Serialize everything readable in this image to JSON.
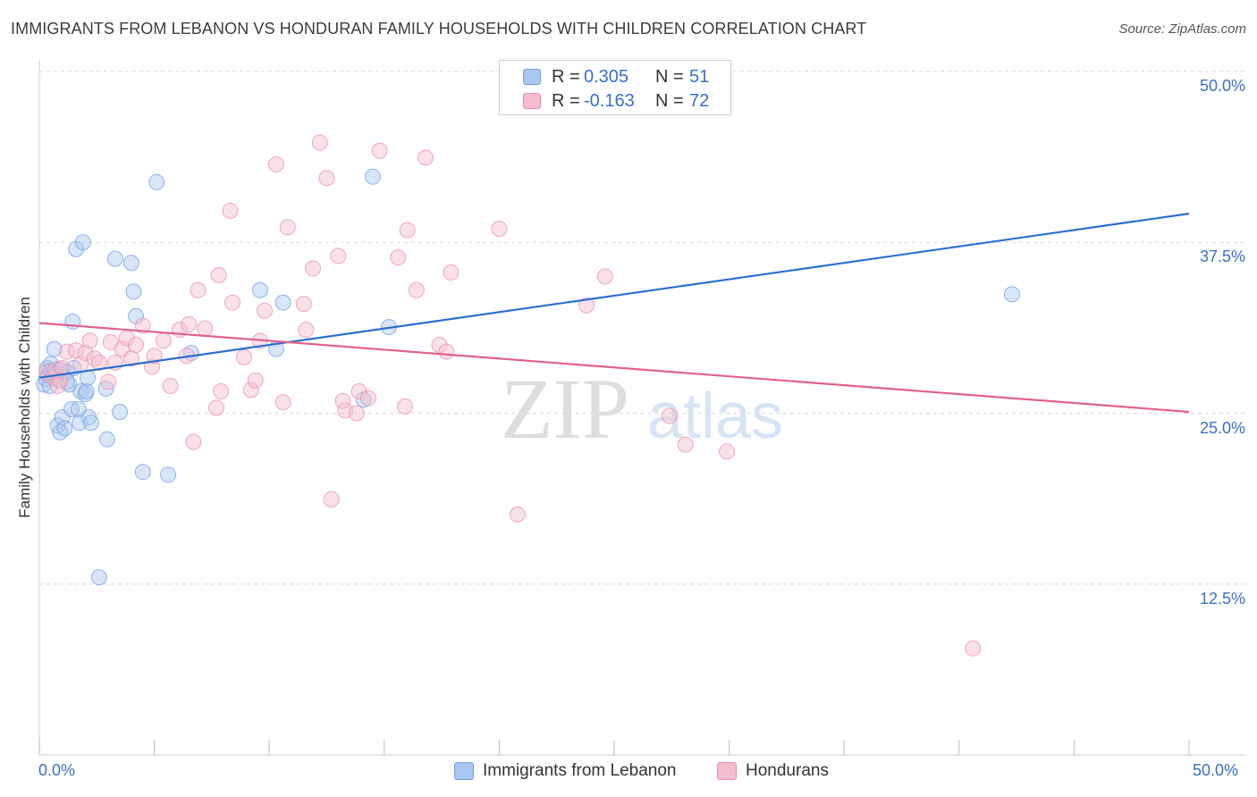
{
  "header": {
    "title": "IMMIGRANTS FROM LEBANON VS HONDURAN FAMILY HOUSEHOLDS WITH CHILDREN CORRELATION CHART",
    "source": "Source: ZipAtlas.com"
  },
  "watermark": {
    "zip": "ZIP",
    "atlas": "atlas"
  },
  "colors": {
    "blue": "#6f9fe6",
    "blue_fill": "#aac7f0",
    "blue_line": "#2c6fd2",
    "pink": "#ea8fab",
    "pink_fill": "#f4bccd",
    "pink_line": "#e0628c",
    "value_text": "#3a6fc8",
    "grid": "#d8d8d8"
  },
  "legend_top": {
    "series": [
      {
        "r_label": "R =",
        "r_value": "0.305",
        "n_label": "N =",
        "n_value": "51"
      },
      {
        "r_label": "R =",
        "r_value": "-0.163",
        "n_label": "N =",
        "n_value": "72"
      }
    ]
  },
  "legend_bottom": {
    "items": [
      "Immigrants from Lebanon",
      "Hondurans"
    ]
  },
  "chart_data": {
    "type": "scatter",
    "title": "IMMIGRANTS FROM LEBANON VS HONDURAN FAMILY HOUSEHOLDS WITH CHILDREN CORRELATION CHART",
    "xlabel": "",
    "ylabel": "Family Households with Children",
    "xlim": [
      0,
      50
    ],
    "ylim": [
      0,
      50
    ],
    "x_tick_labels": [
      "0.0%",
      "50.0%"
    ],
    "y_tick_values": [
      12.5,
      25.0,
      37.5,
      50.0
    ],
    "y_tick_labels": [
      "12.5%",
      "25.0%",
      "37.5%",
      "50.0%"
    ],
    "grid": true,
    "legend_position": "top-center",
    "series": [
      {
        "name": "Immigrants from Lebanon",
        "r": 0.305,
        "n": 51,
        "trend": {
          "x": [
            0,
            50
          ],
          "y": [
            27.6,
            39.6
          ]
        },
        "points": [
          [
            0.2,
            27.1
          ],
          [
            0.3,
            27.5
          ],
          [
            0.35,
            28.3
          ],
          [
            0.4,
            27.8
          ],
          [
            0.45,
            27.0
          ],
          [
            0.5,
            28.6
          ],
          [
            0.6,
            28.0
          ],
          [
            0.65,
            29.7
          ],
          [
            0.7,
            27.6
          ],
          [
            0.8,
            24.1
          ],
          [
            0.9,
            23.6
          ],
          [
            1.0,
            24.7
          ],
          [
            1.1,
            23.9
          ],
          [
            1.2,
            28.0
          ],
          [
            1.3,
            27.1
          ],
          [
            1.4,
            25.3
          ],
          [
            1.45,
            31.7
          ],
          [
            1.5,
            28.3
          ],
          [
            1.6,
            37.0
          ],
          [
            1.7,
            25.3
          ],
          [
            1.75,
            24.3
          ],
          [
            1.8,
            26.6
          ],
          [
            1.9,
            37.5
          ],
          [
            2.0,
            26.4
          ],
          [
            2.05,
            26.6
          ],
          [
            2.1,
            27.6
          ],
          [
            2.15,
            24.7
          ],
          [
            2.25,
            24.3
          ],
          [
            2.6,
            13.0
          ],
          [
            2.9,
            26.8
          ],
          [
            2.95,
            23.1
          ],
          [
            3.3,
            36.3
          ],
          [
            3.5,
            25.1
          ],
          [
            4.0,
            36.0
          ],
          [
            4.1,
            33.9
          ],
          [
            4.2,
            32.1
          ],
          [
            4.5,
            20.7
          ],
          [
            5.1,
            41.9
          ],
          [
            5.6,
            20.5
          ],
          [
            6.6,
            29.4
          ],
          [
            9.6,
            34.0
          ],
          [
            10.3,
            29.7
          ],
          [
            10.6,
            33.1
          ],
          [
            14.1,
            26.0
          ],
          [
            14.5,
            42.3
          ],
          [
            15.2,
            31.3
          ],
          [
            42.3,
            33.7
          ],
          [
            0.5,
            28.1
          ],
          [
            0.7,
            27.9
          ],
          [
            1.2,
            27.3
          ],
          [
            0.9,
            28.2
          ]
        ]
      },
      {
        "name": "Hondurans",
        "r": -0.163,
        "n": 72,
        "trend": {
          "x": [
            0,
            50
          ],
          "y": [
            31.6,
            25.1
          ]
        },
        "points": [
          [
            0.3,
            28.0
          ],
          [
            0.6,
            27.6
          ],
          [
            0.7,
            28.2
          ],
          [
            0.8,
            27.0
          ],
          [
            0.9,
            27.4
          ],
          [
            1.0,
            28.3
          ],
          [
            1.2,
            29.5
          ],
          [
            1.6,
            29.6
          ],
          [
            1.8,
            28.6
          ],
          [
            2.0,
            29.4
          ],
          [
            2.2,
            30.3
          ],
          [
            2.4,
            29.0
          ],
          [
            2.6,
            28.7
          ],
          [
            3.0,
            27.3
          ],
          [
            3.1,
            30.2
          ],
          [
            3.3,
            28.7
          ],
          [
            3.6,
            29.7
          ],
          [
            3.8,
            30.5
          ],
          [
            4.0,
            29.0
          ],
          [
            4.2,
            30.0
          ],
          [
            4.5,
            31.4
          ],
          [
            4.9,
            28.4
          ],
          [
            5.0,
            29.2
          ],
          [
            5.4,
            30.3
          ],
          [
            5.7,
            27.0
          ],
          [
            6.1,
            31.1
          ],
          [
            6.4,
            29.2
          ],
          [
            6.5,
            31.5
          ],
          [
            6.7,
            22.9
          ],
          [
            6.9,
            34.0
          ],
          [
            7.2,
            31.2
          ],
          [
            7.7,
            25.4
          ],
          [
            7.8,
            35.1
          ],
          [
            7.9,
            26.6
          ],
          [
            8.3,
            39.8
          ],
          [
            8.4,
            33.1
          ],
          [
            8.9,
            29.1
          ],
          [
            9.2,
            26.7
          ],
          [
            9.4,
            27.4
          ],
          [
            9.6,
            30.3
          ],
          [
            9.8,
            32.5
          ],
          [
            10.3,
            43.2
          ],
          [
            10.6,
            25.8
          ],
          [
            10.8,
            38.6
          ],
          [
            11.5,
            33.0
          ],
          [
            11.6,
            31.1
          ],
          [
            11.9,
            35.6
          ],
          [
            12.2,
            44.8
          ],
          [
            12.5,
            42.2
          ],
          [
            12.7,
            18.7
          ],
          [
            13.0,
            36.5
          ],
          [
            13.2,
            25.9
          ],
          [
            13.3,
            25.2
          ],
          [
            13.8,
            25.0
          ],
          [
            13.9,
            26.6
          ],
          [
            14.3,
            26.1
          ],
          [
            14.8,
            44.2
          ],
          [
            15.6,
            36.4
          ],
          [
            15.9,
            25.5
          ],
          [
            16.0,
            38.4
          ],
          [
            16.4,
            34.0
          ],
          [
            16.8,
            43.7
          ],
          [
            17.4,
            30.0
          ],
          [
            17.7,
            29.5
          ],
          [
            17.9,
            35.3
          ],
          [
            20.0,
            38.5
          ],
          [
            20.8,
            17.6
          ],
          [
            23.8,
            32.9
          ],
          [
            24.6,
            35.0
          ],
          [
            27.4,
            24.8
          ],
          [
            28.1,
            22.7
          ],
          [
            29.9,
            22.2
          ],
          [
            40.6,
            7.8
          ]
        ]
      }
    ]
  }
}
